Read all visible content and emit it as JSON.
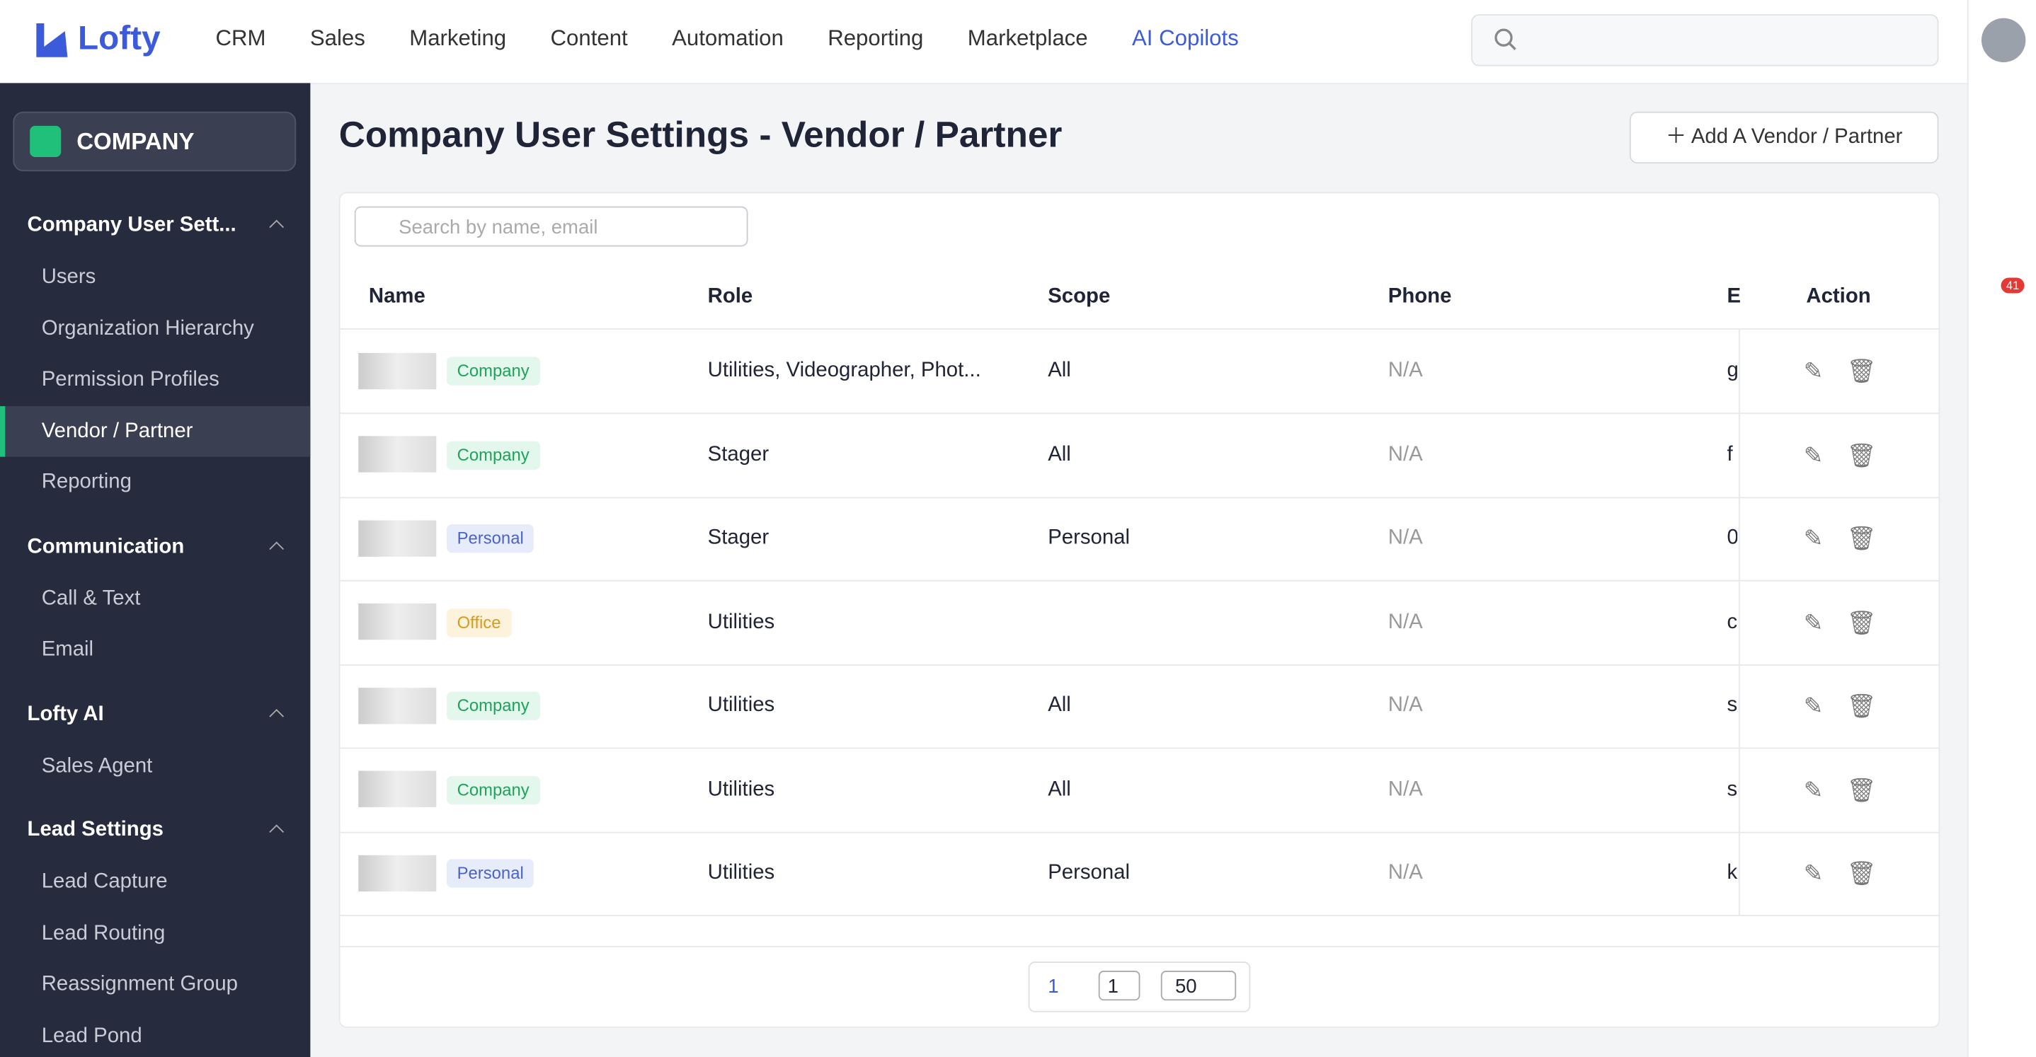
{
  "nav": {
    "logo": "Lofty",
    "items": [
      "CRM",
      "Sales",
      "Marketing",
      "Content",
      "Automation",
      "Reporting",
      "Marketplace"
    ],
    "ai": "AI Copilots"
  },
  "sidebar": {
    "company": "COMPANY",
    "groups": [
      {
        "title": "Company User Sett...",
        "items": [
          "Users",
          "Organization Hierarchy",
          "Permission Profiles",
          "Vendor / Partner",
          "Reporting"
        ]
      },
      {
        "title": "Communication",
        "items": [
          "Call & Text",
          "Email"
        ]
      },
      {
        "title": "Lofty AI",
        "items": [
          "Sales Agent"
        ]
      },
      {
        "title": "Lead Settings",
        "items": [
          "Lead Capture",
          "Lead Routing",
          "Reassignment Group",
          "Lead Pond"
        ]
      }
    ]
  },
  "header": {
    "title": "Company User Settings - Vendor / Partner",
    "add_button": "Add A Vendor / Partner"
  },
  "table": {
    "search_placeholder": "Search by name, email",
    "columns": [
      "Name",
      "Role",
      "Scope",
      "Phone",
      "E",
      "Action"
    ],
    "rows": [
      [
        "Company",
        "Utilities, Videographer, Phot...",
        "All",
        "N/A",
        "g"
      ],
      [
        "Company",
        "Stager",
        "All",
        "N/A",
        "f"
      ],
      [
        "Personal",
        "Stager",
        "Personal",
        "N/A",
        "0"
      ],
      [
        "Office",
        "Utilities",
        null,
        "N/A",
        "c"
      ],
      [
        "Company",
        "Utilities",
        "All",
        "N/A",
        "s"
      ],
      [
        "Company",
        "Utilities",
        "All",
        "N/A",
        "s"
      ],
      [
        "Personal",
        "Utilities",
        "Personal",
        "N/A",
        "k"
      ]
    ]
  },
  "pagination": {
    "current": "1",
    "page_input": "1",
    "page_size": "50"
  },
  "notifications": {
    "badge": "41"
  }
}
